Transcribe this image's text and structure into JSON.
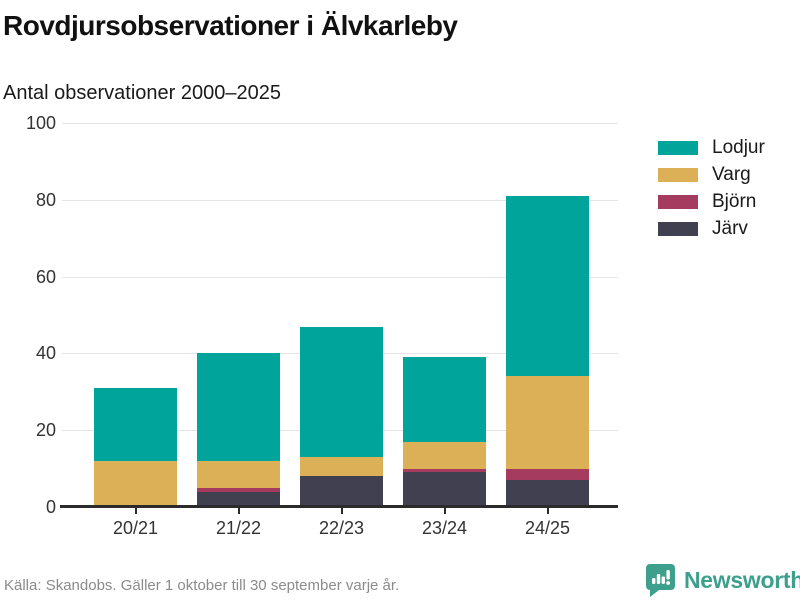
{
  "header": {
    "title": "Rovdjursobservationer i Älvkarleby",
    "subtitle": "Antal observationer 2000–2025"
  },
  "chart_data": {
    "type": "bar",
    "stacked": true,
    "title": "Rovdjursobservationer i Älvkarleby",
    "subtitle": "Antal observationer 2000–2025",
    "categories": [
      "20/21",
      "21/22",
      "22/23",
      "23/24",
      "24/25"
    ],
    "series": [
      {
        "name": "Lodjur",
        "color": "#00a49a",
        "values": [
          19,
          28,
          34,
          22,
          47
        ]
      },
      {
        "name": "Varg",
        "color": "#dbb057",
        "values": [
          12,
          7,
          5,
          7,
          24
        ]
      },
      {
        "name": "Björn",
        "color": "#a53c5f",
        "values": [
          0,
          1,
          0,
          1,
          3
        ]
      },
      {
        "name": "Järv",
        "color": "#414050",
        "values": [
          0,
          4,
          8,
          9,
          7
        ]
      }
    ],
    "totals": [
      31,
      40,
      47,
      39,
      81
    ],
    "xlabel": "",
    "ylabel": "",
    "ylim": [
      0,
      100
    ],
    "yticks": [
      0,
      20,
      40,
      60,
      80,
      100
    ],
    "grid": true,
    "legend_position": "right"
  },
  "footer": {
    "source": "Källa: Skandobs. Gäller 1 oktober till 30 september varje år.",
    "brand": "Newsworthy"
  },
  "colors": {
    "lodjur": "#00a49a",
    "varg": "#dbb057",
    "bjorn": "#a53c5f",
    "jarv": "#414050",
    "axis": "#2b2b2b",
    "gridline": "#e4e4e4",
    "tick_text": "#333333",
    "footer_text": "#8b8b8b",
    "brand_teal": "#3d9f8c"
  }
}
